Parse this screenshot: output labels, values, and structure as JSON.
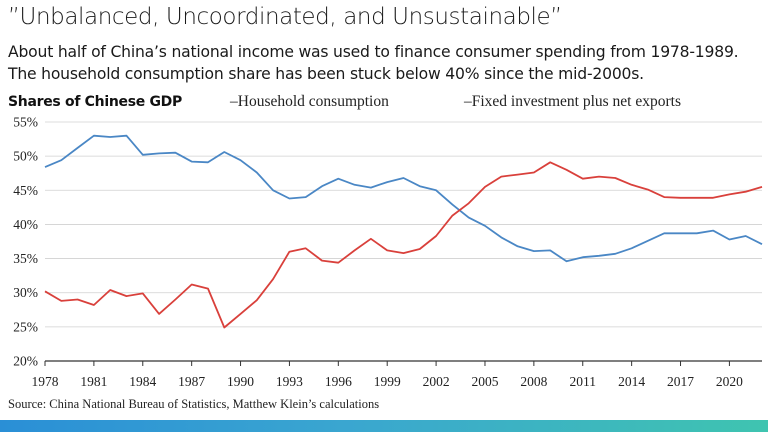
{
  "header": {
    "title": "”Unbalanced, Uncoordinated, and Unsustainable”",
    "subtitle": "About half of China’s national income was used to finance consumer spending from 1978-1989. The household consumption share has been stuck below 40% since the mid-2000s."
  },
  "chart_data": {
    "type": "line",
    "title": "Shares of Chinese GDP",
    "xlabel": "",
    "ylabel": "",
    "xlim": [
      1978,
      2022
    ],
    "ylim": [
      20,
      55
    ],
    "x_ticks": [
      "1978",
      "1981",
      "1984",
      "1987",
      "1990",
      "1993",
      "1996",
      "1999",
      "2002",
      "2005",
      "2008",
      "2011",
      "2014",
      "2017",
      "2020"
    ],
    "y_ticks": [
      "55%",
      "50%",
      "45%",
      "40%",
      "35%",
      "30%",
      "25%",
      "20%"
    ],
    "x": [
      1978,
      1979,
      1980,
      1981,
      1982,
      1983,
      1984,
      1985,
      1986,
      1987,
      1988,
      1989,
      1990,
      1991,
      1992,
      1993,
      1994,
      1995,
      1996,
      1997,
      1998,
      1999,
      2000,
      2001,
      2002,
      2003,
      2004,
      2005,
      2006,
      2007,
      2008,
      2009,
      2010,
      2011,
      2012,
      2013,
      2014,
      2015,
      2016,
      2017,
      2018,
      2019,
      2020,
      2021,
      2022
    ],
    "series": [
      {
        "name": "Household consumption",
        "legend": "–Household consumption",
        "color": "#4a87c5",
        "values": [
          48.4,
          49.4,
          51.2,
          53.0,
          52.8,
          53.0,
          50.2,
          50.4,
          50.5,
          49.2,
          49.1,
          50.6,
          49.4,
          47.6,
          45.0,
          43.8,
          44.0,
          45.6,
          46.7,
          45.8,
          45.4,
          46.2,
          46.8,
          45.6,
          45.0,
          42.9,
          41.0,
          39.8,
          38.1,
          36.8,
          36.1,
          36.2,
          34.6,
          35.2,
          35.4,
          35.7,
          36.5,
          37.6,
          38.7,
          38.7,
          38.7,
          39.1,
          37.8,
          38.3,
          37.1
        ]
      },
      {
        "name": "Fixed investment plus net exports",
        "legend": "–Fixed investment plus net exports",
        "color": "#d9403b",
        "values": [
          30.2,
          28.8,
          29.0,
          28.2,
          30.4,
          29.5,
          29.9,
          26.9,
          29.0,
          31.2,
          30.6,
          24.9,
          26.9,
          28.9,
          32.0,
          36.0,
          36.5,
          34.7,
          34.4,
          36.2,
          37.9,
          36.2,
          35.8,
          36.4,
          38.3,
          41.3,
          43.1,
          45.5,
          47.0,
          47.3,
          47.6,
          49.1,
          48.0,
          46.7,
          47.0,
          46.8,
          45.8,
          45.1,
          44.0,
          43.9,
          43.9,
          43.9,
          44.4,
          44.8,
          45.5
        ]
      }
    ]
  },
  "source": "Source: China National Bureau of Statistics, Matthew Klein’s calculations"
}
